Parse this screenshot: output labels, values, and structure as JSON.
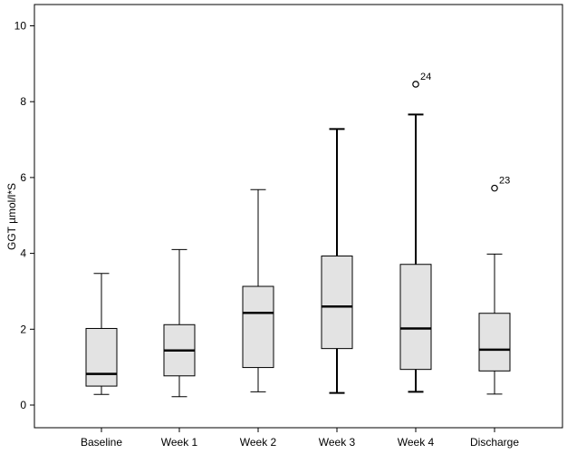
{
  "chart_data": {
    "type": "boxplot",
    "title": "",
    "xlabel": "",
    "ylabel": "GGT µmol/l*S",
    "ylim": [
      -0.6,
      10.5
    ],
    "yticks": [
      0,
      2,
      4,
      6,
      8,
      10
    ],
    "grid": false,
    "categories": [
      "Baseline",
      "Week 1",
      "Week 2",
      "Week 3",
      "Week 4",
      "Discharge"
    ],
    "boxes": [
      {
        "category": "Baseline",
        "min": 0.28,
        "q1": 0.5,
        "median": 0.82,
        "q3": 2.02,
        "max": 3.47,
        "outliers": []
      },
      {
        "category": "Week 1",
        "min": 0.22,
        "q1": 0.77,
        "median": 1.44,
        "q3": 2.12,
        "max": 4.1,
        "outliers": []
      },
      {
        "category": "Week 2",
        "min": 0.35,
        "q1": 0.99,
        "median": 2.43,
        "q3": 3.13,
        "max": 5.68,
        "outliers": []
      },
      {
        "category": "Week 3",
        "min": 0.32,
        "q1": 1.49,
        "median": 2.6,
        "q3": 3.93,
        "max": 7.28,
        "outliers": []
      },
      {
        "category": "Week 4",
        "min": 0.35,
        "q1": 0.94,
        "median": 2.02,
        "q3": 3.71,
        "max": 7.66,
        "outliers": [
          {
            "value": 8.46,
            "label": "24"
          }
        ]
      },
      {
        "category": "Discharge",
        "min": 0.29,
        "q1": 0.9,
        "median": 1.46,
        "q3": 2.42,
        "max": 3.98,
        "outliers": [
          {
            "value": 5.72,
            "label": "23"
          }
        ]
      }
    ],
    "colors": {
      "box_fill": "#e3e3e3",
      "stroke": "#000000",
      "background": "#ffffff"
    }
  }
}
